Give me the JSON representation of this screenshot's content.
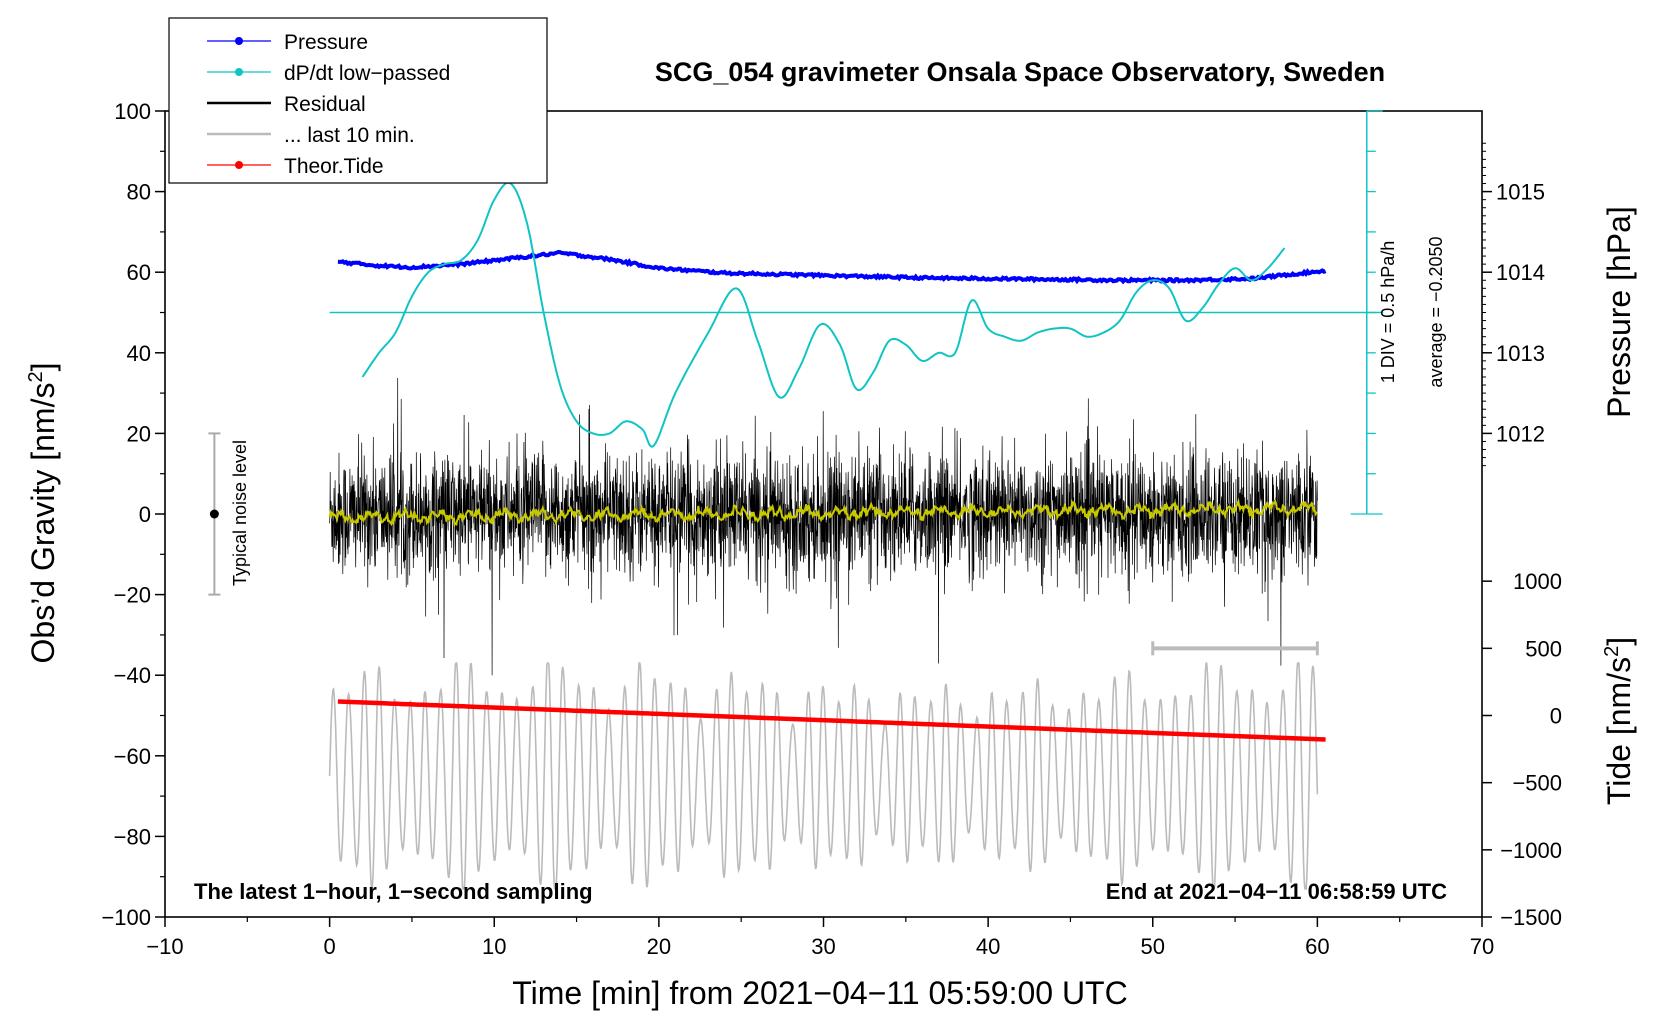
{
  "chart_data": {
    "type": "line",
    "title": "SCG_054 gravimeter Onsala Space Observatory, Sweden",
    "xlabel": "Time [min] from 2021−04−11 05:59:00 UTC",
    "ylabel_left": "Obs’d Gravity [nm/s",
    "ylabel_left_sup": "2",
    "ylabel_left_close": "]",
    "ylabel_right_pressure": "Pressure [hPa]",
    "ylabel_right_tide": "Tide [nm/s",
    "ylabel_right_tide_sup": "2",
    "ylabel_right_tide_close": "]",
    "xlim": [
      -10,
      70
    ],
    "ylim_left": [
      -100,
      100
    ],
    "x_ticks": [
      -10,
      0,
      10,
      20,
      30,
      40,
      50,
      60,
      70
    ],
    "x_tick_labels": [
      "−10",
      "0",
      "10",
      "20",
      "30",
      "40",
      "50",
      "60",
      "70"
    ],
    "y_ticks_left": [
      -100,
      -80,
      -60,
      -40,
      -20,
      0,
      20,
      40,
      60,
      80,
      100
    ],
    "y_tick_labels_left": [
      "−100",
      "−80",
      "−60",
      "−40",
      "−20",
      "0",
      "20",
      "40",
      "60",
      "80",
      "100"
    ],
    "pressure_axis": {
      "ticks": [
        1012,
        1013,
        1014,
        1015
      ],
      "tick_labels": [
        "1012",
        "1013",
        "1014",
        "1015"
      ],
      "ref_left_value": 60,
      "ref_pressure": 1014,
      "left_units_per_hPa": 20
    },
    "tide_axis": {
      "ticks": [
        -1500,
        -1000,
        -500,
        0,
        500,
        1000
      ],
      "tick_labels": [
        "−1500",
        "−1000",
        "−500",
        "0",
        "500",
        "1000"
      ],
      "left_units_per_1000": 33.3333,
      "zero_at_left_value": -50
    },
    "legend": [
      {
        "label": "Pressure",
        "color": "#0000ff",
        "marker": true
      },
      {
        "label": "dP/dt low−passed",
        "color": "#11c4c4",
        "marker": true
      },
      {
        "label": "Residual",
        "color": "#000000",
        "marker": false
      },
      {
        "label": "... last 10 min.",
        "color": "#bbbbbb",
        "marker": false
      },
      {
        "label": "Theor.Tide",
        "color": "#ff0000",
        "marker": true
      }
    ],
    "colors": {
      "pressure": "#0000ff",
      "dpdt": "#11c4c4",
      "residual": "#000000",
      "last10": "#bbbbbb",
      "tide": "#ff0000",
      "smooth": "#c8c800",
      "noise": "#aaaaaa"
    },
    "series": [
      {
        "name": "Pressure",
        "unit": "hPa",
        "x": [
          0.5,
          3,
          5,
          8,
          11,
          14,
          17,
          20,
          24,
          28,
          32,
          36,
          40,
          44,
          48,
          52,
          56,
          60.5
        ],
        "values": [
          1014.13,
          1014.08,
          1014.06,
          1014.1,
          1014.17,
          1014.24,
          1014.16,
          1014.05,
          1013.99,
          1013.97,
          1013.95,
          1013.93,
          1013.92,
          1013.91,
          1013.9,
          1013.9,
          1013.92,
          1014.02
        ]
      },
      {
        "name": "dP/dt low−passed",
        "unit": "left-axis units (1 DIV = 0.5 hPa/h, centre = 50)",
        "x": [
          2,
          3,
          4,
          5,
          6,
          7,
          8,
          9,
          10,
          11,
          12,
          13,
          14,
          15,
          16,
          17,
          18,
          19,
          19.7,
          21,
          23,
          24.7,
          26,
          27.3,
          28.5,
          29.8,
          31,
          32,
          33,
          34,
          35,
          36,
          37,
          38,
          39,
          40,
          41,
          42,
          43,
          44,
          45,
          46,
          47,
          48,
          49,
          50,
          51,
          52,
          53,
          54,
          55,
          56,
          57,
          58
        ],
        "values": [
          34,
          40,
          45,
          54,
          60,
          62,
          63,
          68,
          78,
          82,
          72,
          50,
          32,
          23,
          20,
          20,
          23,
          21,
          17,
          30,
          45,
          56,
          43,
          29,
          36,
          47,
          42,
          31,
          35,
          43,
          42,
          38,
          40,
          40,
          53,
          46,
          44,
          43,
          45,
          46,
          46,
          44,
          45,
          48,
          55,
          58,
          56,
          48,
          51,
          57,
          61,
          58,
          61,
          66
        ]
      },
      {
        "name": "Residual",
        "unit": "nm/s^2",
        "x_range": [
          0,
          60
        ],
        "typical_range": [
          -20,
          20
        ],
        "max": 38,
        "min": -40
      },
      {
        "name": "... last 10 min.",
        "unit": "nm/s^2 (shifted)",
        "x_range": [
          0,
          60
        ],
        "range": [
          -93,
          -37
        ]
      },
      {
        "name": "Theor.Tide",
        "unit": "nm/s^2",
        "x": [
          0.5,
          60.5
        ],
        "values": [
          104,
          -179
        ]
      }
    ],
    "noise_level": {
      "label": "Typical noise level",
      "x": -7,
      "y_low": -20,
      "y_high": 20,
      "y_center": 0
    },
    "last10_marker": {
      "x_start": 50,
      "x_end": 60,
      "tide_value": 500
    },
    "scale_bar": {
      "label_div": "1 DIV = 0.5 hPa/h",
      "label_avg": "average = −0.2050",
      "x": 63,
      "y_top": 100,
      "y_bottom": 0,
      "ticks_every": 10
    },
    "footer_left": "The latest 1−hour, 1−second sampling",
    "footer_right": "End at 2021−04−11 06:58:59 UTC"
  }
}
